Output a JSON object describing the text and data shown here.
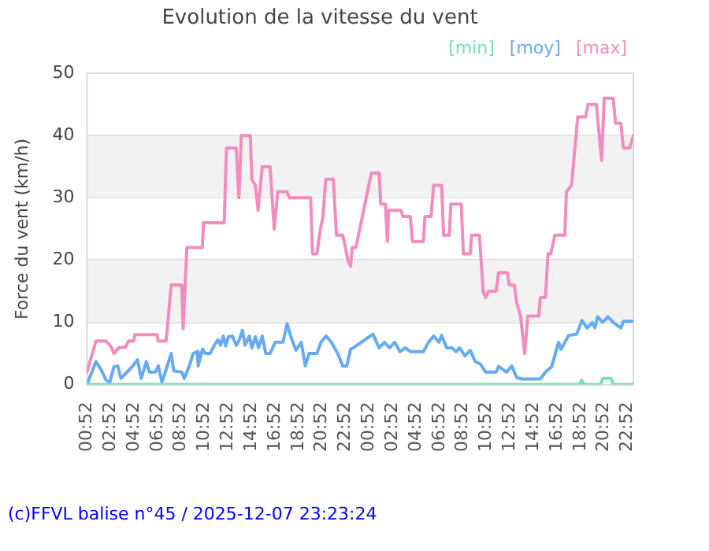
{
  "chart_data": {
    "type": "line",
    "title": "Evolution de la vitesse du vent",
    "ylabel": "Force du vent (km/h)",
    "xlim": [
      "2025-12-06T00:52",
      "2025-12-07T23:22"
    ],
    "ylim": [
      0,
      50
    ],
    "xticks": [
      {
        "value": "2025-12-06T00:52",
        "label": "00:52"
      },
      {
        "value": "2025-12-06T02:52",
        "label": "02:52"
      },
      {
        "value": "2025-12-06T04:52",
        "label": "04:52"
      },
      {
        "value": "2025-12-06T06:52",
        "label": "06:52"
      },
      {
        "value": "2025-12-06T08:52",
        "label": "08:52"
      },
      {
        "value": "2025-12-06T10:52",
        "label": "10:52"
      },
      {
        "value": "2025-12-06T12:52",
        "label": "12:52"
      },
      {
        "value": "2025-12-06T14:52",
        "label": "14:52"
      },
      {
        "value": "2025-12-06T16:52",
        "label": "16:52"
      },
      {
        "value": "2025-12-06T18:52",
        "label": "18:52"
      },
      {
        "value": "2025-12-06T20:52",
        "label": "20:52"
      },
      {
        "value": "2025-12-06T22:52",
        "label": "22:52"
      },
      {
        "value": "2025-12-07T00:52",
        "label": "00:52"
      },
      {
        "value": "2025-12-07T02:52",
        "label": "02:52"
      },
      {
        "value": "2025-12-07T04:52",
        "label": "04:52"
      },
      {
        "value": "2025-12-07T06:52",
        "label": "06:52"
      },
      {
        "value": "2025-12-07T08:52",
        "label": "08:52"
      },
      {
        "value": "2025-12-07T10:52",
        "label": "10:52"
      },
      {
        "value": "2025-12-07T12:52",
        "label": "12:52"
      },
      {
        "value": "2025-12-07T14:52",
        "label": "14:52"
      },
      {
        "value": "2025-12-07T16:52",
        "label": "16:52"
      },
      {
        "value": "2025-12-07T18:52",
        "label": "18:52"
      },
      {
        "value": "2025-12-07T20:52",
        "label": "20:52"
      },
      {
        "value": "2025-12-07T22:52",
        "label": "22:52"
      }
    ],
    "yticks": [
      0,
      10,
      20,
      30,
      40,
      50
    ],
    "grid": "y",
    "legend": "top right",
    "marker": "none",
    "line_style": "solid",
    "bands": [
      {
        "axis": "y",
        "from": 10,
        "to": 20,
        "color": "#f2f2f2"
      },
      {
        "axis": "y",
        "from": 30,
        "to": 40,
        "color": "#f2f2f2"
      }
    ],
    "annotations": [
      "(c)FFVL balise n°45 / 2025-12-07 23:23:24"
    ],
    "series": [
      {
        "name": "[min]",
        "color": "#77e0b0",
        "x": [
          "2025-12-06T00:52",
          "2025-12-07T18:46",
          "2025-12-07T18:58",
          "2025-12-07T19:10",
          "2025-12-07T20:34",
          "2025-12-07T20:46",
          "2025-12-07T21:28",
          "2025-12-07T21:40",
          "2025-12-07T23:22"
        ],
        "values": [
          0,
          0,
          0.7,
          0,
          0,
          1,
          1,
          0,
          0
        ]
      },
      {
        "name": "[moy]",
        "color": "#66aaf0",
        "x": [
          "2025-12-06T00:52",
          "2025-12-06T01:38",
          "2025-12-06T02:04",
          "2025-12-06T02:30",
          "2025-12-06T02:49",
          "2025-12-06T03:10",
          "2025-12-06T03:29",
          "2025-12-06T03:45",
          "2025-12-06T04:17",
          "2025-12-06T04:43",
          "2025-12-06T05:10",
          "2025-12-06T05:29",
          "2025-12-06T05:55",
          "2025-12-06T06:11",
          "2025-12-06T06:42",
          "2025-12-06T06:56",
          "2025-12-06T07:15",
          "2025-12-06T07:36",
          "2025-12-06T08:02",
          "2025-12-06T08:15",
          "2025-12-06T08:56",
          "2025-12-06T09:09",
          "2025-12-06T09:35",
          "2025-12-06T09:54",
          "2025-12-06T10:15",
          "2025-12-06T10:20",
          "2025-12-06T10:42",
          "2025-12-06T10:55",
          "2025-12-06T11:21",
          "2025-12-06T11:42",
          "2025-12-06T12:01",
          "2025-12-06T12:14",
          "2025-12-06T12:28",
          "2025-12-06T12:41",
          "2025-12-06T12:54",
          "2025-12-06T13:15",
          "2025-12-06T13:34",
          "2025-12-06T13:47",
          "2025-12-06T14:06",
          "2025-12-06T14:19",
          "2025-12-06T14:41",
          "2025-12-06T14:54",
          "2025-12-06T15:12",
          "2025-12-06T15:28",
          "2025-12-06T15:47",
          "2025-12-06T16:05",
          "2025-12-06T16:27",
          "2025-12-06T16:53",
          "2025-12-06T17:33",
          "2025-12-06T17:54",
          "2025-12-06T18:13",
          "2025-12-06T18:39",
          "2025-12-06T19:06",
          "2025-12-06T19:27",
          "2025-12-06T19:46",
          "2025-12-06T20:26",
          "2025-12-06T20:47",
          "2025-12-06T21:13",
          "2025-12-06T21:40",
          "2025-12-06T22:12",
          "2025-12-06T22:38",
          "2025-12-06T22:59",
          "2025-12-06T23:18",
          "2025-12-06T23:32",
          "2025-12-07T01:12",
          "2025-12-07T01:44",
          "2025-12-07T02:11",
          "2025-12-07T02:37",
          "2025-12-07T03:03",
          "2025-12-07T03:30",
          "2025-12-07T03:57",
          "2025-12-07T04:23",
          "2025-12-07T05:30",
          "2025-12-07T05:56",
          "2025-12-07T06:23",
          "2025-12-07T06:49",
          "2025-12-07T07:03",
          "2025-12-07T07:29",
          "2025-12-07T07:56",
          "2025-12-07T08:17",
          "2025-12-07T08:35",
          "2025-12-07T09:02",
          "2025-12-07T09:29",
          "2025-12-07T09:55",
          "2025-12-07T10:21",
          "2025-12-07T10:48",
          "2025-12-07T11:41",
          "2025-12-07T11:54",
          "2025-12-07T12:35",
          "2025-12-07T13:01",
          "2025-12-07T13:27",
          "2025-12-07T13:54",
          "2025-12-07T15:27",
          "2025-12-07T15:53",
          "2025-12-07T16:25",
          "2025-12-07T17:00",
          "2025-12-07T17:13",
          "2025-12-07T17:52",
          "2025-12-07T18:33",
          "2025-12-07T18:59",
          "2025-12-07T19:26",
          "2025-12-07T19:52",
          "2025-12-07T20:06",
          "2025-12-07T20:19",
          "2025-12-07T20:45",
          "2025-12-07T21:12",
          "2025-12-07T21:39",
          "2025-12-07T22:18",
          "2025-12-07T22:32",
          "2025-12-07T23:22"
        ],
        "values": [
          0,
          3.7,
          2.4,
          0.7,
          0.4,
          2.9,
          3,
          1,
          2,
          2.9,
          4,
          1,
          3.7,
          2,
          2,
          3,
          0.4,
          2.4,
          5,
          2.2,
          2,
          1,
          3,
          5,
          5.3,
          3,
          5.7,
          5,
          5,
          6.3,
          7.2,
          6.3,
          7.8,
          6.2,
          7.7,
          7.8,
          6.3,
          7,
          8.7,
          6.3,
          7.8,
          5.9,
          7.7,
          5.9,
          7.8,
          5,
          5,
          6.8,
          6.8,
          9.8,
          7.7,
          5.5,
          6.8,
          3,
          5,
          5,
          6.8,
          7.8,
          6.8,
          5,
          3,
          3,
          5.7,
          5.9,
          8.1,
          5.9,
          6.8,
          5.9,
          6.8,
          5.3,
          5.9,
          5.3,
          5.3,
          6.8,
          7.8,
          6.8,
          7.9,
          5.9,
          5.9,
          5.3,
          5.9,
          4.6,
          5.5,
          3.7,
          3.3,
          2,
          2,
          2.9,
          2,
          3,
          1.1,
          0.9,
          0.9,
          2,
          2.9,
          6.8,
          5.7,
          7.9,
          8.1,
          10.3,
          9.1,
          10,
          9.1,
          10.9,
          10,
          10.9,
          10,
          9.1,
          10.2,
          10.2
        ]
      },
      {
        "name": "[max]",
        "color": "#f28cbf",
        "x": [
          "2025-12-06T00:52",
          "2025-12-06T01:38",
          "2025-12-06T02:30",
          "2025-12-06T02:57",
          "2025-12-06T03:10",
          "2025-12-06T03:37",
          "2025-12-06T04:09",
          "2025-12-06T04:24",
          "2025-12-06T04:51",
          "2025-12-06T04:56",
          "2025-12-06T06:50",
          "2025-12-06T06:56",
          "2025-12-06T07:36",
          "2025-12-06T08:02",
          "2025-12-06T08:56",
          "2025-12-06T09:03",
          "2025-12-06T09:22",
          "2025-12-06T10:41",
          "2025-12-06T10:47",
          "2025-12-06T12:33",
          "2025-12-06T12:44",
          "2025-12-06T13:34",
          "2025-12-06T13:48",
          "2025-12-06T14:00",
          "2025-12-06T14:46",
          "2025-12-06T14:54",
          "2025-12-06T15:12",
          "2025-12-06T15:26",
          "2025-12-06T15:47",
          "2025-12-06T16:27",
          "2025-12-06T16:48",
          "2025-12-06T17:06",
          "2025-12-06T17:54",
          "2025-12-06T18:05",
          "2025-12-06T19:54",
          "2025-12-06T20:04",
          "2025-12-06T20:26",
          "2025-12-06T20:44",
          "2025-12-06T20:57",
          "2025-12-06T21:11",
          "2025-12-06T21:50",
          "2025-12-06T22:06",
          "2025-12-06T22:38",
          "2025-12-06T23:05",
          "2025-12-06T23:18",
          "2025-12-06T23:26",
          "2025-12-06T23:45",
          "2025-12-07T01:04",
          "2025-12-07T01:44",
          "2025-12-07T01:52",
          "2025-12-07T02:16",
          "2025-12-07T02:26",
          "2025-12-07T02:32",
          "2025-12-07T03:36",
          "2025-12-07T03:46",
          "2025-12-07T04:23",
          "2025-12-07T04:34",
          "2025-12-07T05:30",
          "2025-12-07T05:38",
          "2025-12-07T06:09",
          "2025-12-07T06:22",
          "2025-12-07T07:03",
          "2025-12-07T07:13",
          "2025-12-07T07:42",
          "2025-12-07T07:50",
          "2025-12-07T08:43",
          "2025-12-07T08:54",
          "2025-12-07T09:29",
          "2025-12-07T09:36",
          "2025-12-07T10:16",
          "2025-12-07T10:35",
          "2025-12-07T10:48",
          "2025-12-07T11:02",
          "2025-12-07T11:41",
          "2025-12-07T11:54",
          "2025-12-07T12:39",
          "2025-12-07T12:48",
          "2025-12-07T13:14",
          "2025-12-07T13:27",
          "2025-12-07T13:46",
          "2025-12-07T14:07",
          "2025-12-07T14:23",
          "2025-12-07T15:19",
          "2025-12-07T15:27",
          "2025-12-07T15:53",
          "2025-12-07T16:06",
          "2025-12-07T16:20",
          "2025-12-07T16:41",
          "2025-12-07T17:32",
          "2025-12-07T17:40",
          "2025-12-07T18:06",
          "2025-12-07T18:38",
          "2025-12-07T19:18",
          "2025-12-07T19:31",
          "2025-12-07T20:13",
          "2025-12-07T20:40",
          "2025-12-07T20:53",
          "2025-12-07T21:39",
          "2025-12-07T21:51",
          "2025-12-07T22:18",
          "2025-12-07T22:31",
          "2025-12-07T23:03",
          "2025-12-07T23:22"
        ],
        "values": [
          2,
          7,
          7,
          6,
          5,
          6,
          6,
          7,
          7,
          8,
          8,
          7,
          7,
          16,
          16,
          9,
          22,
          22,
          26,
          26,
          38,
          38,
          30,
          40,
          40,
          33,
          32,
          28,
          35,
          35,
          25,
          31,
          31,
          30,
          30,
          21,
          21,
          25,
          27,
          33,
          33,
          24,
          24,
          20,
          19,
          22,
          22,
          34,
          34,
          29,
          29,
          23,
          28,
          28,
          27,
          27,
          23,
          23,
          27,
          27,
          32,
          32,
          24,
          24,
          29,
          29,
          21,
          21,
          24,
          24,
          15,
          14,
          15,
          15,
          18,
          18,
          16,
          16,
          13,
          11,
          5,
          11,
          11,
          14,
          14,
          21,
          21,
          24,
          24,
          31,
          32,
          43,
          43,
          45,
          45,
          36,
          46,
          46,
          42,
          42,
          38,
          38,
          40
        ]
      }
    ]
  }
}
